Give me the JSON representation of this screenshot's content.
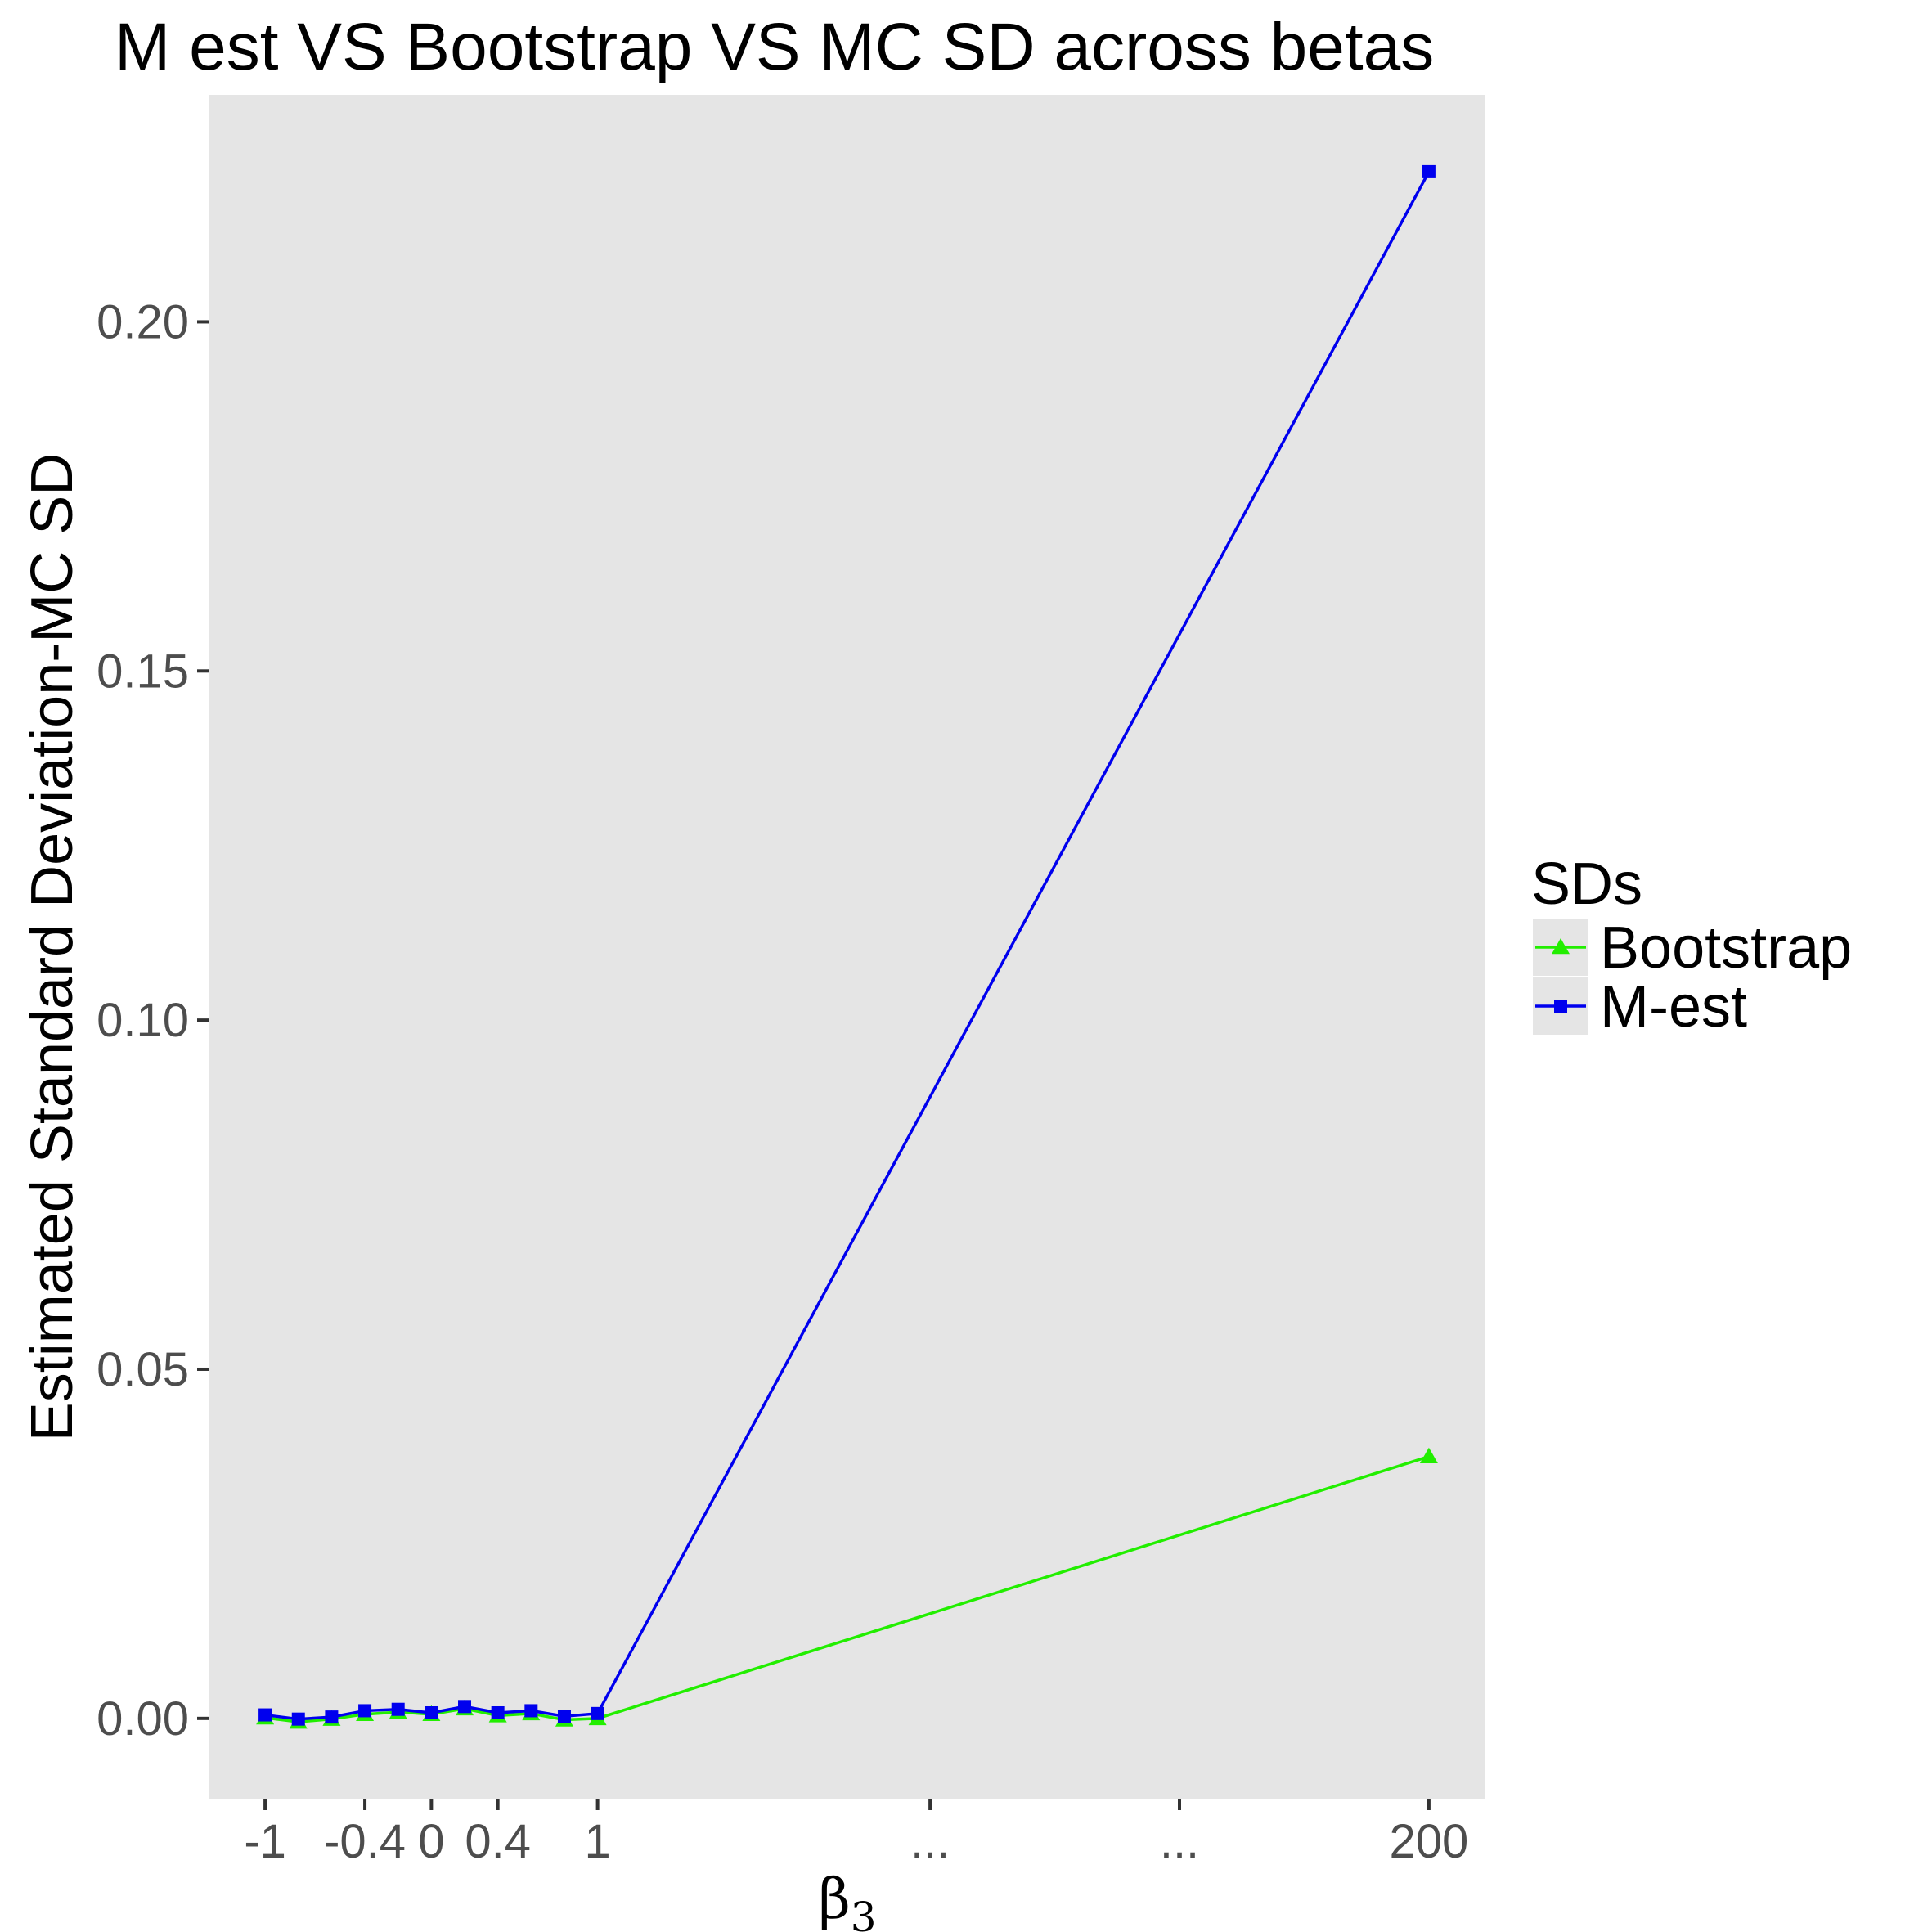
{
  "chart_data": {
    "type": "line",
    "title": "M est VS Bootstrap VS MC SD across betas",
    "xlabel_symbol": "β",
    "xlabel_subscript": "3",
    "ylabel": "Estimated Standard Deviation-MC SD",
    "x_tick_labels": [
      "-1",
      "-0.4",
      "0",
      "0.4",
      "1",
      "...",
      "...",
      "200"
    ],
    "y_tick_labels": [
      "0.00",
      "0.05",
      "0.10",
      "0.15",
      "0.20"
    ],
    "y_ticks": [
      0.0,
      0.05,
      0.1,
      0.15,
      0.2
    ],
    "ylim": [
      -0.0115,
      0.2325
    ],
    "x_positions": [
      1,
      2,
      3,
      4,
      5,
      6,
      7,
      8,
      9,
      10,
      11,
      36
    ],
    "x_tick_positions": [
      1,
      4,
      6,
      8,
      11,
      21,
      28.5,
      36
    ],
    "xlim": [
      -0.7,
      37.7
    ],
    "legend": {
      "title": "SDs",
      "position": "right"
    },
    "grid": false,
    "panel_background": "#e5e5e5",
    "series": [
      {
        "name": "Bootstrap",
        "color": "#22ee00",
        "marker": "triangle",
        "values": [
          0.0001,
          -0.0005,
          -0.0001,
          0.0006,
          0.0009,
          0.0006,
          0.0014,
          0.0004,
          0.0007,
          -0.0002,
          0.0,
          0.0375
        ]
      },
      {
        "name": "M-est",
        "color": "#0000ee",
        "marker": "square",
        "values": [
          0.0005,
          -0.0001,
          0.0002,
          0.0011,
          0.0013,
          0.0008,
          0.0017,
          0.0008,
          0.0011,
          0.0003,
          0.0007,
          0.2215
        ]
      }
    ]
  }
}
